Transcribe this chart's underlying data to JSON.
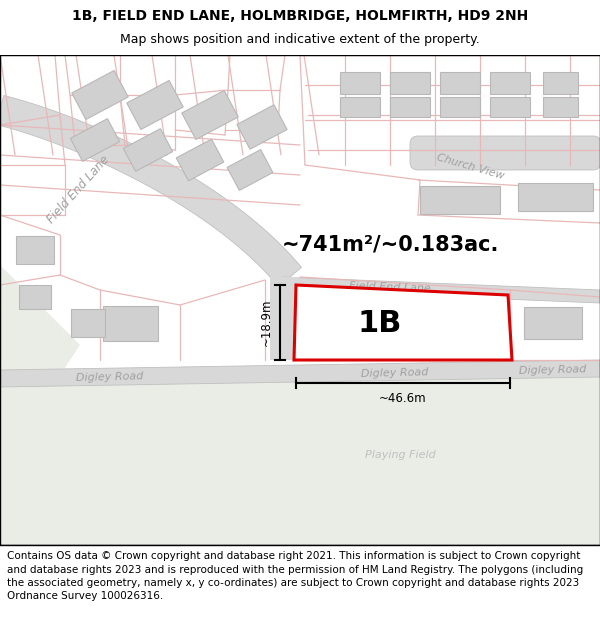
{
  "title_line1": "1B, FIELD END LANE, HOLMBRIDGE, HOLMFIRTH, HD9 2NH",
  "title_line2": "Map shows position and indicative extent of the property.",
  "area_text": "~741m²/~0.183ac.",
  "label_1b": "1B",
  "dim_height": "~18.9m",
  "dim_width": "~46.6m",
  "road_field_end_lane_diag": "Field End Lane",
  "road_field_end_lane_horiz": "Field End Lane",
  "road_digley_left": "Digley Road",
  "road_digley_center": "Digley Road",
  "road_digley_right": "Digley Road",
  "road_church_view": "Church View",
  "label_playing_field": "Playing Field",
  "footer_text": "Contains OS data © Crown copyright and database right 2021. This information is subject to Crown copyright and database rights 2023 and is reproduced with the permission of HM Land Registry. The polygons (including the associated geometry, namely x, y co-ordinates) are subject to Crown copyright and database rights 2023 Ordnance Survey 100026316.",
  "bg_map_color": "#ffffff",
  "bg_field_color": "#eaede6",
  "road_gray_color": "#d8d8d8",
  "road_gray_edge": "#c0c0c0",
  "building_fill_color": "#d0d0d0",
  "building_edge_color": "#b8b8b8",
  "plot_outline_color": "#dd0000",
  "plot_fill_color": "#ffffff",
  "pink_line_color": "#e8b8b8",
  "pink_line_color2": "#f0c8c8",
  "road_label_color": "#a0a0a0",
  "title_fontsize": 10,
  "subtitle_fontsize": 9,
  "footer_fontsize": 7.5,
  "area_fontsize": 15,
  "label_1b_fontsize": 22,
  "dim_fontsize": 8.5
}
